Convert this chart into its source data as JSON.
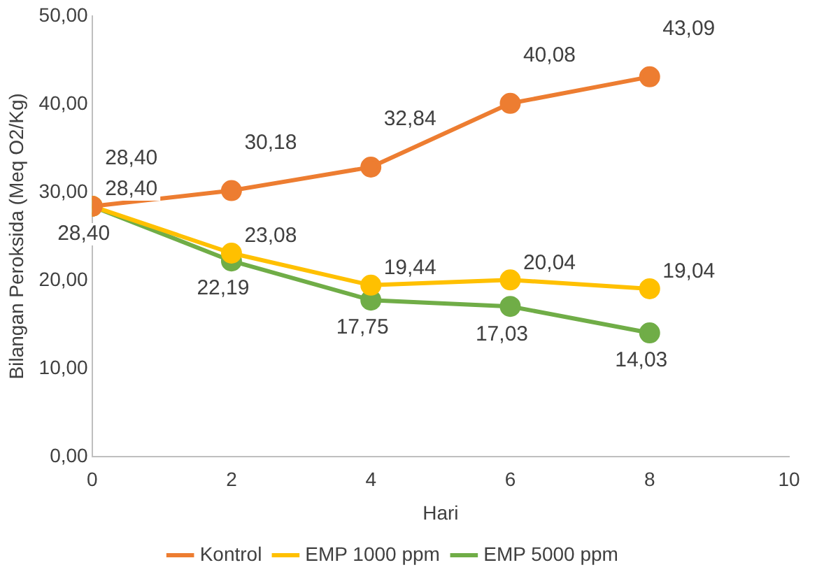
{
  "chart_data": {
    "type": "line",
    "xlabel": "Hari",
    "ylabel": "Bilangan Peroksida (Meq O2/Kg)",
    "x": [
      0,
      2,
      4,
      6,
      8
    ],
    "series": [
      {
        "name": "Kontrol",
        "color": "#ed7d31",
        "values": [
          28.4,
          30.18,
          32.84,
          40.08,
          43.09
        ],
        "value_labels": [
          "28,40",
          "30,18",
          "32,84",
          "40,08",
          "43,09"
        ]
      },
      {
        "name": "EMP 1000 ppm",
        "color": "#ffc000",
        "values": [
          28.4,
          23.08,
          19.44,
          20.04,
          19.04
        ],
        "value_labels": [
          "28,40",
          "23,08",
          "19,44",
          "20,04",
          "19,04"
        ]
      },
      {
        "name": "EMP 5000 ppm",
        "color": "#70ad47",
        "values": [
          28.4,
          22.19,
          17.75,
          17.03,
          14.03
        ],
        "value_labels": [
          "28,40",
          "22,19",
          "17,75",
          "17,03",
          "14,03"
        ]
      }
    ],
    "xlim": [
      0,
      10
    ],
    "xticks": [
      0,
      2,
      4,
      6,
      8,
      10
    ],
    "ylim": [
      0,
      50
    ],
    "yticks": [
      {
        "value": 0,
        "label": "0,00"
      },
      {
        "value": 10,
        "label": "10,00"
      },
      {
        "value": 20,
        "label": "20,00"
      },
      {
        "value": 30,
        "label": "30,00"
      },
      {
        "value": 40,
        "label": "40,00"
      },
      {
        "value": 50,
        "label": "50,00"
      }
    ],
    "grid": false,
    "legend": "bottom",
    "marker": "circle",
    "line_style": "solid"
  }
}
